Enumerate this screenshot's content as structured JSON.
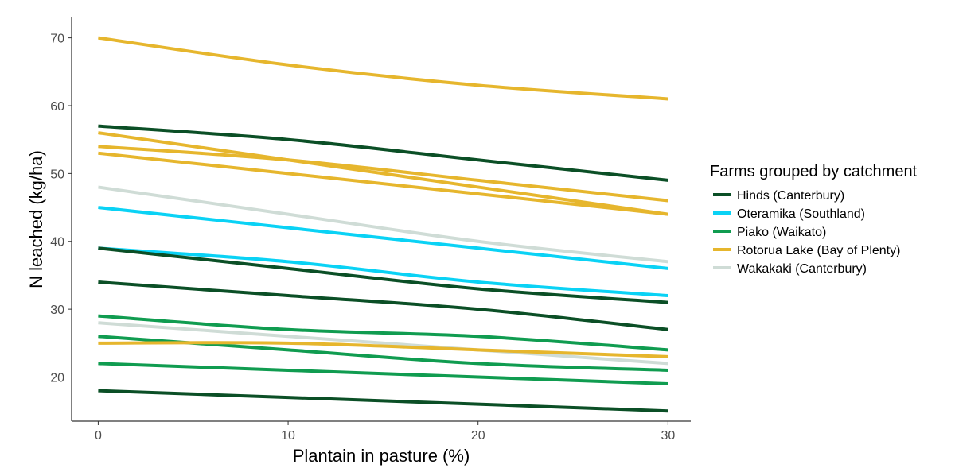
{
  "chart_data": {
    "type": "line",
    "title": "",
    "xlabel": "Plantain in pasture (%)",
    "ylabel": "N leached (kg/ha)",
    "xlim": [
      -1.4,
      31.2
    ],
    "ylim": [
      13.5,
      73.0
    ],
    "x_ticks": [
      0,
      10,
      20,
      30
    ],
    "y_ticks": [
      20,
      30,
      40,
      50,
      60,
      70
    ],
    "grid": false,
    "legend": {
      "title": "Farms grouped by catchment",
      "position": "right",
      "entries": [
        {
          "label": "Hinds (Canterbury)",
          "color": "#0b4f26"
        },
        {
          "label": "Oteramika (Southland)",
          "color": "#0ad2f5"
        },
        {
          "label": "Piako (Waikato)",
          "color": "#109c50"
        },
        {
          "label": "Rotorua Lake (Bay of Plenty)",
          "color": "#e6b62d"
        },
        {
          "label": "Wakakaki (Canterbury)",
          "color": "#cfdcd6"
        }
      ]
    },
    "x": [
      0,
      10,
      20,
      30
    ],
    "series": [
      {
        "group": "Wakakaki (Canterbury)",
        "color": "#cfdcd6",
        "values": [
          48,
          44,
          40,
          37
        ]
      },
      {
        "group": "Wakakaki (Canterbury)",
        "color": "#cfdcd6",
        "values": [
          28,
          26,
          24,
          22
        ]
      },
      {
        "group": "Oteramika (Southland)",
        "color": "#0ad2f5",
        "values": [
          45,
          42,
          39,
          36
        ]
      },
      {
        "group": "Oteramika (Southland)",
        "color": "#0ad2f5",
        "values": [
          39,
          37,
          34,
          32
        ]
      },
      {
        "group": "Piako (Waikato)",
        "color": "#109c50",
        "values": [
          29,
          27,
          26,
          24
        ]
      },
      {
        "group": "Piako (Waikato)",
        "color": "#109c50",
        "values": [
          26,
          24,
          22,
          21
        ]
      },
      {
        "group": "Piako (Waikato)",
        "color": "#109c50",
        "values": [
          22,
          21,
          20,
          19
        ]
      },
      {
        "group": "Rotorua Lake (Bay of Plenty)",
        "color": "#e6b62d",
        "values": [
          70,
          66,
          63,
          61
        ]
      },
      {
        "group": "Rotorua Lake (Bay of Plenty)",
        "color": "#e6b62d",
        "values": [
          56,
          52,
          48,
          44
        ]
      },
      {
        "group": "Rotorua Lake (Bay of Plenty)",
        "color": "#e6b62d",
        "values": [
          54,
          52,
          49,
          46
        ]
      },
      {
        "group": "Rotorua Lake (Bay of Plenty)",
        "color": "#e6b62d",
        "values": [
          53,
          50,
          47,
          44
        ]
      },
      {
        "group": "Rotorua Lake (Bay of Plenty)",
        "color": "#e6b62d",
        "values": [
          25,
          25,
          24,
          23
        ]
      },
      {
        "group": "Hinds (Canterbury)",
        "color": "#0b4f26",
        "values": [
          57,
          55,
          52,
          49
        ]
      },
      {
        "group": "Hinds (Canterbury)",
        "color": "#0b4f26",
        "values": [
          39,
          36,
          33,
          31
        ]
      },
      {
        "group": "Hinds (Canterbury)",
        "color": "#0b4f26",
        "values": [
          34,
          32,
          30,
          27
        ]
      },
      {
        "group": "Hinds (Canterbury)",
        "color": "#0b4f26",
        "values": [
          18,
          17,
          16,
          15
        ]
      }
    ]
  }
}
